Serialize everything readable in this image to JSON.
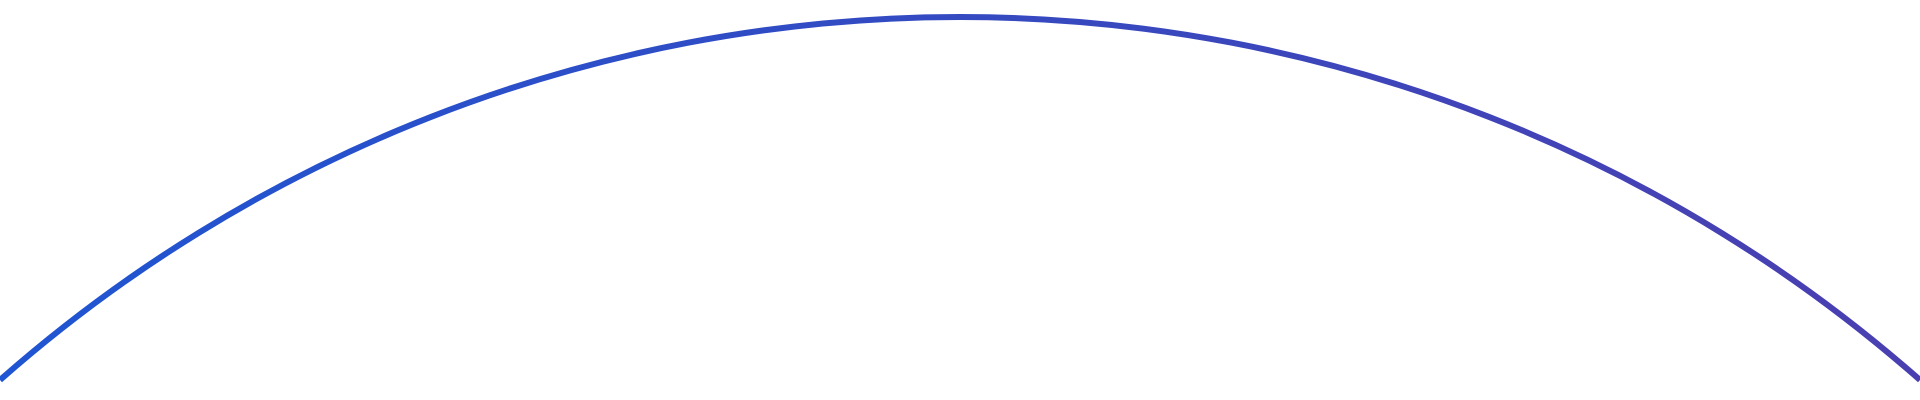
{
  "arc": {
    "color_start": "#1f55d2",
    "color_end": "#4a3fb0"
  }
}
